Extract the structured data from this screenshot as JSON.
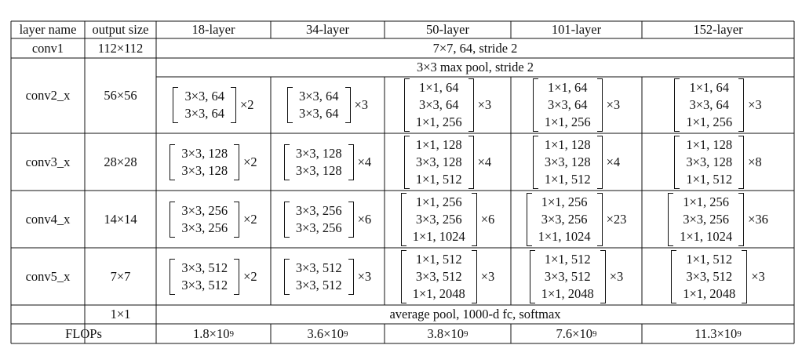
{
  "columns": [
    "layer name",
    "output size",
    "18-layer",
    "34-layer",
    "50-layer",
    "101-layer",
    "152-layer"
  ],
  "conv1": {
    "name": "conv1",
    "size": "112×112",
    "desc": "7×7, 64, stride 2"
  },
  "pool": {
    "desc": "3×3 max pool, stride 2"
  },
  "stages": [
    {
      "name": "conv2_x",
      "size": "56×56",
      "blocks": [
        {
          "rows": [
            "3×3, 64",
            "3×3, 64"
          ],
          "mult": "×2"
        },
        {
          "rows": [
            "3×3, 64",
            "3×3, 64"
          ],
          "mult": "×3"
        },
        {
          "rows": [
            "1×1, 64",
            "3×3, 64",
            "1×1, 256"
          ],
          "mult": "×3"
        },
        {
          "rows": [
            "1×1, 64",
            "3×3, 64",
            "1×1, 256"
          ],
          "mult": "×3"
        },
        {
          "rows": [
            "1×1, 64",
            "3×3, 64",
            "1×1, 256"
          ],
          "mult": "×3"
        }
      ]
    },
    {
      "name": "conv3_x",
      "size": "28×28",
      "blocks": [
        {
          "rows": [
            "3×3, 128",
            "3×3, 128"
          ],
          "mult": "×2"
        },
        {
          "rows": [
            "3×3, 128",
            "3×3, 128"
          ],
          "mult": "×4"
        },
        {
          "rows": [
            "1×1, 128",
            "3×3, 128",
            "1×1, 512"
          ],
          "mult": "×4"
        },
        {
          "rows": [
            "1×1, 128",
            "3×3, 128",
            "1×1, 512"
          ],
          "mult": "×4"
        },
        {
          "rows": [
            "1×1, 128",
            "3×3, 128",
            "1×1, 512"
          ],
          "mult": "×8"
        }
      ]
    },
    {
      "name": "conv4_x",
      "size": "14×14",
      "blocks": [
        {
          "rows": [
            "3×3, 256",
            "3×3, 256"
          ],
          "mult": "×2"
        },
        {
          "rows": [
            "3×3, 256",
            "3×3, 256"
          ],
          "mult": "×6"
        },
        {
          "rows": [
            "1×1, 256",
            "3×3, 256",
            "1×1, 1024"
          ],
          "mult": "×6"
        },
        {
          "rows": [
            "1×1, 256",
            "3×3, 256",
            "1×1, 1024"
          ],
          "mult": "×23"
        },
        {
          "rows": [
            "1×1, 256",
            "3×3, 256",
            "1×1, 1024"
          ],
          "mult": "×36"
        }
      ]
    },
    {
      "name": "conv5_x",
      "size": "7×7",
      "blocks": [
        {
          "rows": [
            "3×3, 512",
            "3×3, 512"
          ],
          "mult": "×2"
        },
        {
          "rows": [
            "3×3, 512",
            "3×3, 512"
          ],
          "mult": "×3"
        },
        {
          "rows": [
            "1×1, 512",
            "3×3, 512",
            "1×1, 2048"
          ],
          "mult": "×3"
        },
        {
          "rows": [
            "1×1, 512",
            "3×3, 512",
            "1×1, 2048"
          ],
          "mult": "×3"
        },
        {
          "rows": [
            "1×1, 512",
            "3×3, 512",
            "1×1, 2048"
          ],
          "mult": "×3"
        }
      ]
    }
  ],
  "final": {
    "size": "1×1",
    "desc": "average pool, 1000-d fc, softmax"
  },
  "flops": {
    "label": "FLOPs",
    "values": [
      {
        "mant": "1.8×10",
        "exp": "9"
      },
      {
        "mant": "3.6×10",
        "exp": "9"
      },
      {
        "mant": "3.8×10",
        "exp": "9"
      },
      {
        "mant": "7.6×10",
        "exp": "9"
      },
      {
        "mant": "11.3×10",
        "exp": "9"
      }
    ]
  }
}
